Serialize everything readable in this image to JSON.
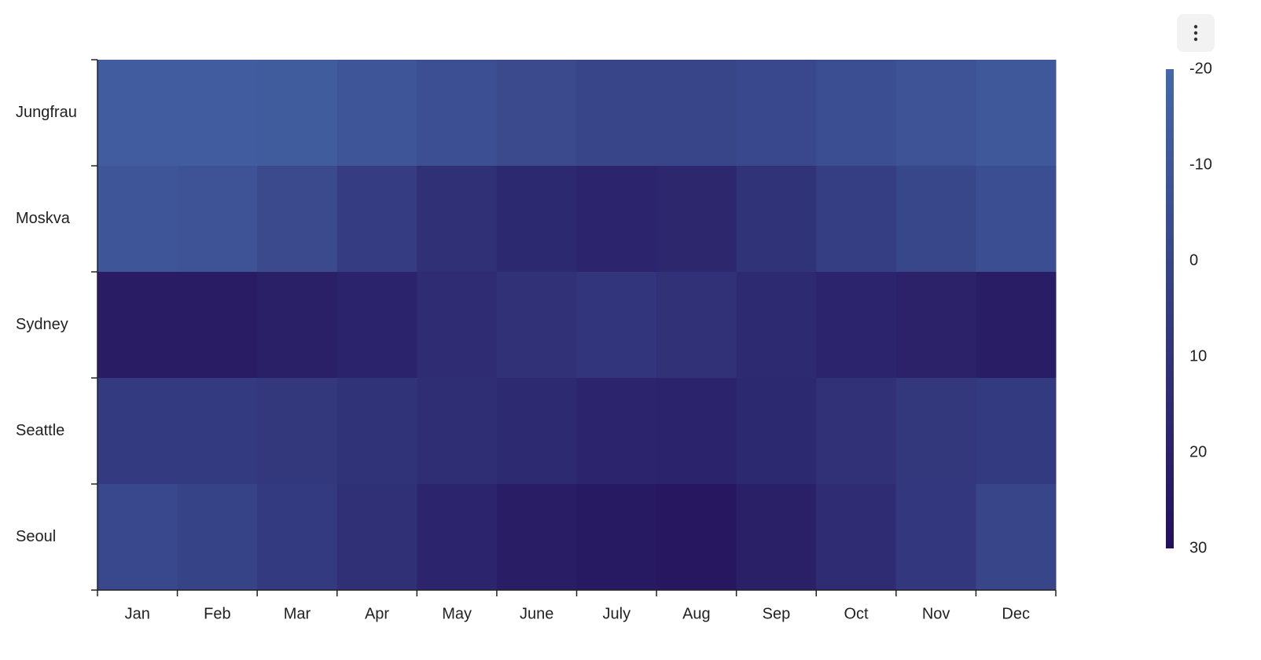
{
  "chart_data": {
    "type": "heatmap",
    "x": [
      "Jan",
      "Feb",
      "Mar",
      "Apr",
      "May",
      "June",
      "July",
      "Aug",
      "Sep",
      "Oct",
      "Nov",
      "Dec"
    ],
    "y": [
      "Jungfrau",
      "Moskva",
      "Sydney",
      "Seattle",
      "Seoul"
    ],
    "values": [
      [
        -14,
        -14,
        -13,
        -10,
        -6,
        -3,
        0,
        0,
        -2,
        -5,
        -8,
        -11
      ],
      [
        -9,
        -8,
        -3,
        5,
        12,
        16,
        18,
        17,
        10,
        4,
        -1,
        -5
      ],
      [
        23,
        23,
        21,
        19,
        14,
        11,
        9,
        11,
        15,
        18,
        20,
        22
      ],
      [
        6,
        6,
        8,
        10,
        13,
        15,
        18,
        19,
        16,
        11,
        8,
        6
      ],
      [
        -2,
        1,
        6,
        12,
        18,
        22,
        25,
        26,
        21,
        14,
        7,
        0
      ]
    ],
    "colorscale": [
      "#4568a8",
      "#24105a"
    ],
    "zlim": [
      -20,
      30
    ],
    "zticks": [
      -20,
      -10,
      0,
      10,
      20,
      30
    ]
  }
}
